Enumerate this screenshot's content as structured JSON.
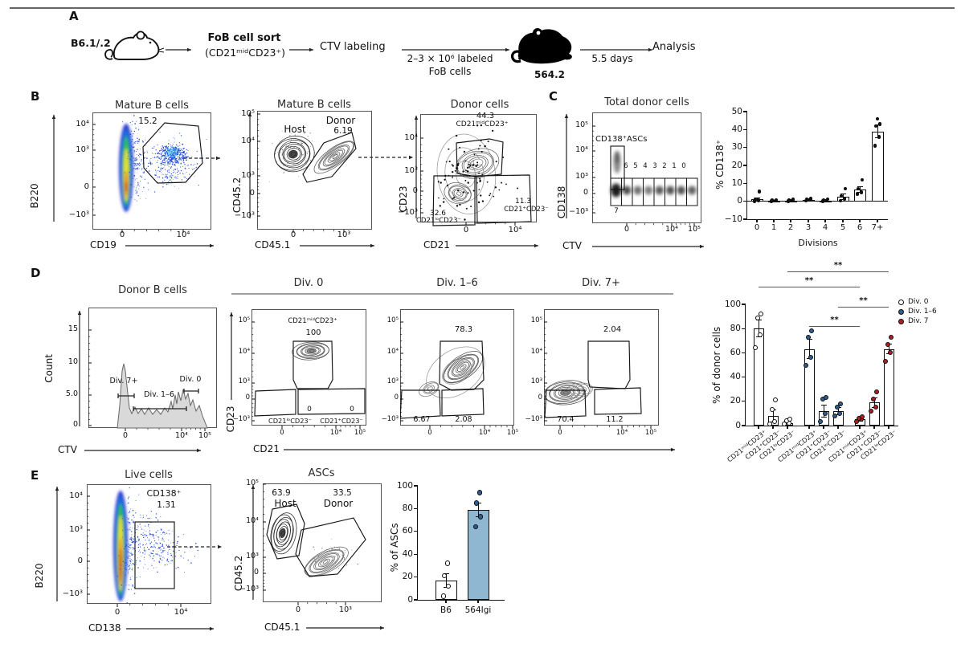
{
  "panelA": {
    "label": "A",
    "strain": "B6.1/.2",
    "sort_title": "FoB cell sort",
    "sort_subtitle": "(CD21ᵐⁱᵈCD23⁺)",
    "ctv_step": "CTV labeling",
    "transfer_line1": "2–3 × 10⁶ labeled",
    "transfer_line2": "FoB cells",
    "recipient": "564.2",
    "duration": "5.5 days",
    "final_step": "Analysis"
  },
  "panelB": {
    "label": "B",
    "plot1": {
      "title": "Mature B cells",
      "gate_value": "15.2",
      "xlabel": "CD19",
      "ylabel": "B220",
      "yticks": [
        "10⁴",
        "10³",
        "0",
        "−10³"
      ],
      "xticks": [
        "0",
        "10⁴"
      ]
    },
    "plot2": {
      "title": "Mature B cells",
      "host": "Host",
      "donor": "Donor",
      "donor_value": "6.19",
      "xlabel": "CD45.1",
      "ylabel": "CD45.2",
      "yticks": [
        "10⁵",
        "10⁴",
        "10³",
        "0",
        "−10³"
      ],
      "xticks": [
        "0",
        "10³"
      ]
    },
    "plot3": {
      "title": "Donor cells",
      "gate_top_value": "44.3",
      "gate_top_label": "CD21ᵐⁱᵈCD23⁺",
      "gate_bl_value": "32.6",
      "gate_bl_label": "CD21ˡᵒCD23⁻",
      "gate_br_value": "11.3",
      "gate_br_label": "CD21⁺CD23⁻",
      "xlabel": "CD21",
      "ylabel": "CD23",
      "yticks": [
        "10⁴",
        "10³",
        "0",
        "−10³"
      ],
      "xticks": [
        "0",
        "10⁴"
      ]
    }
  },
  "panelC": {
    "label": "C",
    "plot": {
      "title": "Total donor cells",
      "asc_gate": "CD138⁺ASCs",
      "bins": [
        "6",
        "5",
        "4",
        "3",
        "2",
        "1",
        "0"
      ],
      "bin7": "7",
      "xlabel": "CTV",
      "ylabel": "CD138",
      "yticks": [
        "10⁵",
        "10⁴",
        "10³",
        "0",
        "−10³"
      ],
      "xticks": [
        "0",
        "10⁴",
        "10⁵"
      ]
    }
  },
  "panelD": {
    "label": "D",
    "histogram": {
      "title": "Donor B cells",
      "ylabel": "Count",
      "xlabel": "CTV",
      "yticks": [
        "15",
        "10",
        "5.0",
        "0"
      ],
      "xticks": [
        "0",
        "10⁴",
        "10⁵"
      ],
      "gate_div7": "Div. 7+",
      "gate_div16": "Div. 1–6",
      "gate_div0": "Div. 0"
    },
    "col_headers": [
      "Div. 0",
      "Div. 1–6",
      "Div. 7+"
    ],
    "shared_xlabel": "CD21",
    "shared_ylabel": "CD23",
    "yticks": [
      "10⁵",
      "10⁴",
      "10³",
      "0",
      "−10³"
    ],
    "xticks": [
      "0",
      "10⁴",
      "10⁵"
    ],
    "div0": {
      "gate_top_label": "CD21ᵐⁱᵈCD23⁺",
      "gate_top_value": "100",
      "gate_bl_value": "0",
      "gate_br_value": "0",
      "gate_bl_label": "CD21ˡᵒCD23⁻",
      "gate_br_label": "CD21⁺CD23⁻"
    },
    "div16": {
      "gate_top_value": "78.3",
      "gate_bl_value": "6.67",
      "gate_br_value": "2.08"
    },
    "div7": {
      "gate_top_value": "2.04",
      "gate_bl_value": "70.4",
      "gate_br_value": "11.2"
    }
  },
  "panelE": {
    "label": "E",
    "plot1": {
      "title": "Live cells",
      "gate_label": "CD138⁺",
      "gate_value": "1.31",
      "xlabel": "CD138",
      "ylabel": "B220",
      "yticks": [
        "10⁴",
        "10³",
        "0",
        "−10³"
      ],
      "xticks": [
        "0",
        "10⁴"
      ]
    },
    "plot2": {
      "title": "ASCs",
      "host_value": "63.9",
      "host": "Host",
      "donor_value": "33.5",
      "donor": "Donor",
      "xlabel": "CD45.1",
      "ylabel": "CD45.2",
      "yticks": [
        "10⁵",
        "10⁴",
        "10³",
        "0",
        "−10³"
      ],
      "xticks": [
        "0",
        "10³"
      ]
    }
  },
  "chart_data": [
    {
      "id": "cd138-by-division",
      "type": "bar",
      "title": "",
      "ylabel": "% CD138⁺",
      "xlabel": "Divisions",
      "ylim": [
        -10,
        50
      ],
      "yticks": [
        50,
        40,
        30,
        20,
        10,
        0,
        -10
      ],
      "categories": [
        "0",
        "1",
        "2",
        "3",
        "4",
        "5",
        "6",
        "7+"
      ],
      "values": [
        1,
        0.3,
        0.5,
        0.8,
        0.5,
        2.5,
        6.5,
        39
      ],
      "errors": [
        1,
        0.3,
        0.4,
        0.4,
        0.4,
        1.5,
        1.5,
        3.5
      ],
      "points": [
        [
          0,
          0.5,
          1,
          5.5
        ],
        [
          0,
          0.2,
          0.5,
          0.8
        ],
        [
          0,
          0.3,
          0.6,
          1
        ],
        [
          0.3,
          0.7,
          1,
          1.4
        ],
        [
          0,
          0.3,
          0.7,
          1.3
        ],
        [
          0.3,
          1.5,
          3,
          7
        ],
        [
          4,
          5,
          7,
          12
        ],
        [
          31,
          36,
          42,
          43,
          46
        ]
      ],
      "bar_fill": "#ffffff",
      "point_fill": "#111111"
    },
    {
      "id": "donor-cell-subsets",
      "type": "bar",
      "title": "",
      "ylabel": "% of donor cells",
      "xlabel": "",
      "ylim": [
        0,
        100
      ],
      "yticks": [
        100,
        80,
        60,
        40,
        20,
        0
      ],
      "categories": [
        "CD21ᵐⁱᵈCD23⁺",
        "CD21⁺CD23⁻",
        "CD21ˡᵒCD23⁻",
        "CD21ᵐⁱᵈCD23⁺",
        "CD21⁺CD23⁻",
        "CD21ˡᵒCD23⁻",
        "CD21ᵐⁱᵈCD23⁺",
        "CD21⁺CD23⁻",
        "CD21ˡᵒCD23⁻"
      ],
      "groups": [
        "Div. 0",
        "Div. 0",
        "Div. 0",
        "Div. 1–6",
        "Div. 1–6",
        "Div. 1–6",
        "Div. 7",
        "Div. 7",
        "Div. 7"
      ],
      "values": [
        80,
        8,
        2,
        63,
        12,
        12,
        5,
        19,
        63
      ],
      "errors": [
        7,
        5,
        1.5,
        8,
        5,
        3,
        1.2,
        4,
        4
      ],
      "points": [
        [
          64,
          75,
          89,
          92
        ],
        [
          1,
          3,
          13,
          21
        ],
        [
          1,
          2,
          4,
          5
        ],
        [
          50,
          56,
          73,
          78
        ],
        [
          3,
          10,
          22,
          23
        ],
        [
          8,
          10,
          15,
          18
        ],
        [
          3,
          5,
          6,
          7
        ],
        [
          12,
          15,
          22,
          28
        ],
        [
          53,
          60,
          67,
          73
        ]
      ],
      "legend": [
        {
          "label": "Div. 0",
          "fill": "#ffffff"
        },
        {
          "label": "Div. 1–6",
          "fill": "#2d5f8e"
        },
        {
          "label": "Div. 7",
          "fill": "#b01e24"
        }
      ],
      "significance": [
        {
          "a": 3,
          "b": 6,
          "label": "**"
        },
        {
          "a": 5,
          "b": 8,
          "label": "**"
        },
        {
          "a": 0,
          "b": 6,
          "label": "**"
        },
        {
          "a": 2,
          "b": 8,
          "label": "**"
        }
      ]
    },
    {
      "id": "asc-origin",
      "type": "bar",
      "title": "",
      "ylabel": "% of ASCs",
      "xlabel": "",
      "ylim": [
        0,
        100
      ],
      "yticks": [
        100,
        80,
        60,
        40,
        20,
        0
      ],
      "categories": [
        "B6",
        "564Igi"
      ],
      "values": [
        17,
        79
      ],
      "errors": [
        6,
        6
      ],
      "points": [
        [
          3,
          12,
          21,
          32
        ],
        [
          64,
          73,
          85,
          94
        ]
      ],
      "bar_fills": [
        "#ffffff",
        "#8fb7d1"
      ],
      "point_fills": [
        "#ffffff",
        "#2d5f8e"
      ]
    }
  ]
}
